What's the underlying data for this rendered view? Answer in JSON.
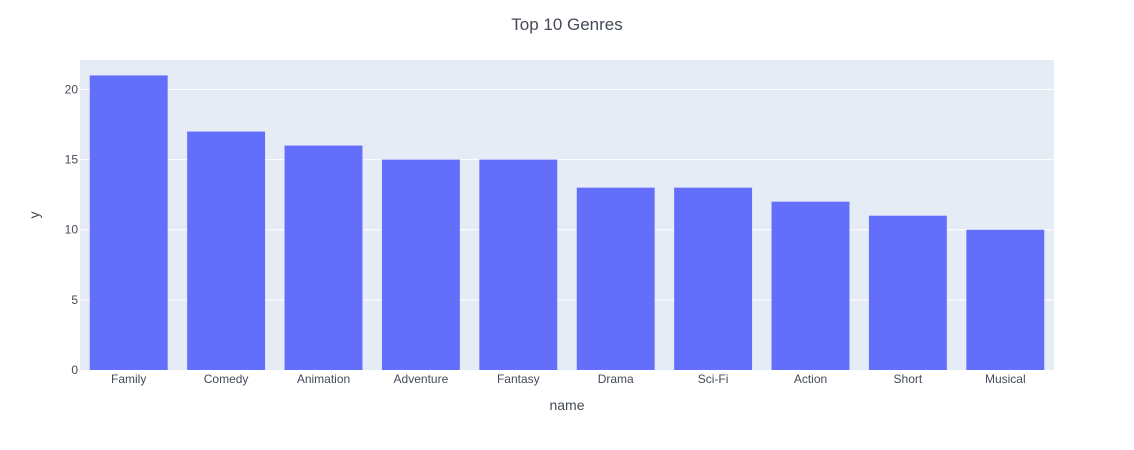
{
  "chart_data": {
    "type": "bar",
    "title": "Top 10 Genres",
    "xlabel": "name",
    "ylabel": "y",
    "categories": [
      "Family",
      "Comedy",
      "Animation",
      "Adventure",
      "Fantasy",
      "Drama",
      "Sci-Fi",
      "Action",
      "Short",
      "Musical"
    ],
    "values": [
      21,
      17,
      16,
      15,
      15,
      13,
      13,
      12,
      11,
      10
    ],
    "ylim": [
      0,
      22.1
    ],
    "yticks": [
      0,
      5,
      10,
      15,
      20
    ],
    "grid": true,
    "legend": "none",
    "colors": {
      "bar": "#636efa",
      "plot_bg": "#e5ecf6",
      "grid": "#ffffff",
      "text": "#444a57"
    }
  }
}
